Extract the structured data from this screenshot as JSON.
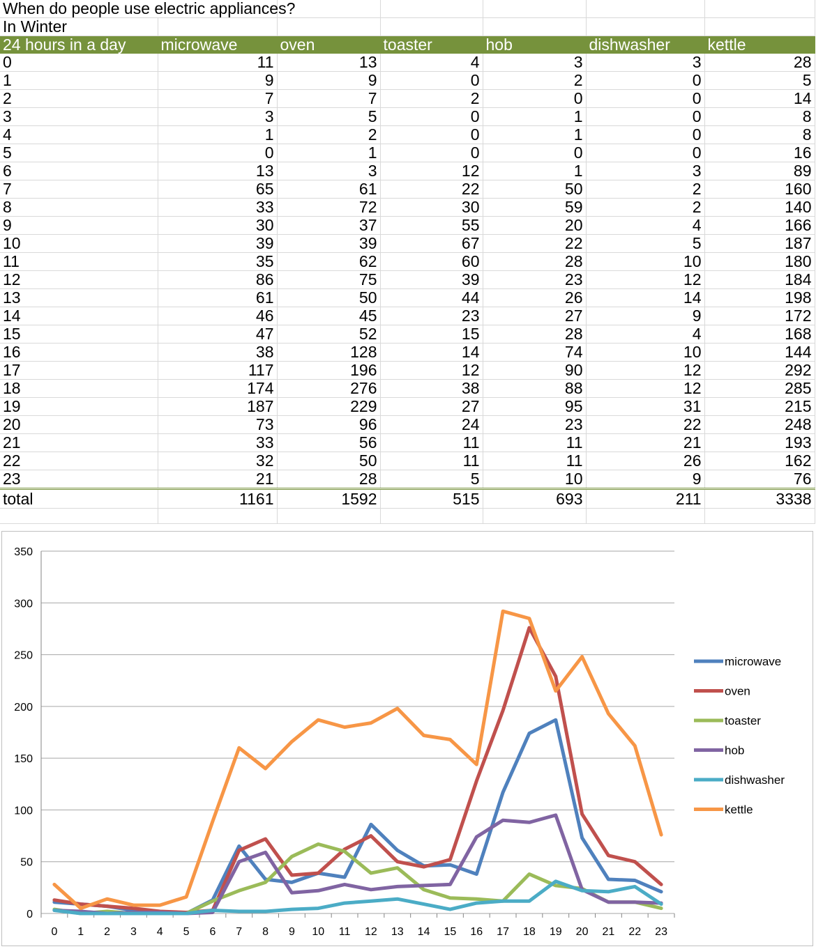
{
  "sheet": {
    "title": "When do people use electric appliances?",
    "subtitle": "In Winter",
    "header": [
      "24 hours in a day",
      "microwave",
      "oven",
      "toaster",
      "hob",
      "dishwasher",
      "kettle"
    ],
    "rows": [
      [
        "0",
        11,
        13,
        4,
        3,
        3,
        28
      ],
      [
        "1",
        9,
        9,
        0,
        2,
        0,
        5
      ],
      [
        "2",
        7,
        7,
        2,
        0,
        0,
        14
      ],
      [
        "3",
        3,
        5,
        0,
        1,
        0,
        8
      ],
      [
        "4",
        1,
        2,
        0,
        1,
        0,
        8
      ],
      [
        "5",
        0,
        1,
        0,
        0,
        0,
        16
      ],
      [
        "6",
        13,
        3,
        12,
        1,
        3,
        89
      ],
      [
        "7",
        65,
        61,
        22,
        50,
        2,
        160
      ],
      [
        "8",
        33,
        72,
        30,
        59,
        2,
        140
      ],
      [
        "9",
        30,
        37,
        55,
        20,
        4,
        166
      ],
      [
        "10",
        39,
        39,
        67,
        22,
        5,
        187
      ],
      [
        "11",
        35,
        62,
        60,
        28,
        10,
        180
      ],
      [
        "12",
        86,
        75,
        39,
        23,
        12,
        184
      ],
      [
        "13",
        61,
        50,
        44,
        26,
        14,
        198
      ],
      [
        "14",
        46,
        45,
        23,
        27,
        9,
        172
      ],
      [
        "15",
        47,
        52,
        15,
        28,
        4,
        168
      ],
      [
        "16",
        38,
        128,
        14,
        74,
        10,
        144
      ],
      [
        "17",
        117,
        196,
        12,
        90,
        12,
        292
      ],
      [
        "18",
        174,
        276,
        38,
        88,
        12,
        285
      ],
      [
        "19",
        187,
        229,
        27,
        95,
        31,
        215
      ],
      [
        "20",
        73,
        96,
        24,
        23,
        22,
        248
      ],
      [
        "21",
        33,
        56,
        11,
        11,
        21,
        193
      ],
      [
        "22",
        32,
        50,
        11,
        11,
        26,
        162
      ],
      [
        "23",
        21,
        28,
        5,
        10,
        9,
        76
      ]
    ],
    "total": [
      "total",
      1161,
      1592,
      515,
      693,
      211,
      3338
    ]
  },
  "chart_data": {
    "type": "line",
    "x": [
      "0",
      "1",
      "2",
      "3",
      "4",
      "5",
      "6",
      "7",
      "8",
      "9",
      "10",
      "11",
      "12",
      "13",
      "14",
      "15",
      "16",
      "17",
      "18",
      "19",
      "20",
      "21",
      "22",
      "23"
    ],
    "ylim": [
      0,
      350
    ],
    "yticks": [
      0,
      50,
      100,
      150,
      200,
      250,
      300,
      350
    ],
    "grid": true,
    "legend": "right",
    "series": [
      {
        "name": "microwave",
        "color": "#4f81bd",
        "values": [
          11,
          9,
          7,
          3,
          1,
          0,
          13,
          65,
          33,
          30,
          39,
          35,
          86,
          61,
          46,
          47,
          38,
          117,
          174,
          187,
          73,
          33,
          32,
          21
        ]
      },
      {
        "name": "oven",
        "color": "#c0504d",
        "values": [
          13,
          9,
          7,
          5,
          2,
          1,
          3,
          61,
          72,
          37,
          39,
          62,
          75,
          50,
          45,
          52,
          128,
          196,
          276,
          229,
          96,
          56,
          50,
          28
        ]
      },
      {
        "name": "toaster",
        "color": "#9bbb59",
        "values": [
          4,
          0,
          2,
          0,
          0,
          0,
          12,
          22,
          30,
          55,
          67,
          60,
          39,
          44,
          23,
          15,
          14,
          12,
          38,
          27,
          24,
          11,
          11,
          5
        ]
      },
      {
        "name": "hob",
        "color": "#8064a2",
        "values": [
          3,
          2,
          0,
          1,
          1,
          0,
          1,
          50,
          59,
          20,
          22,
          28,
          23,
          26,
          27,
          28,
          74,
          90,
          88,
          95,
          23,
          11,
          11,
          10
        ]
      },
      {
        "name": "dishwasher",
        "color": "#4bacc6",
        "values": [
          3,
          0,
          0,
          0,
          0,
          0,
          3,
          2,
          2,
          4,
          5,
          10,
          12,
          14,
          9,
          4,
          10,
          12,
          12,
          31,
          22,
          21,
          26,
          9
        ]
      },
      {
        "name": "kettle",
        "color": "#f79646",
        "values": [
          28,
          5,
          14,
          8,
          8,
          16,
          89,
          160,
          140,
          166,
          187,
          180,
          184,
          198,
          172,
          168,
          144,
          292,
          285,
          215,
          248,
          193,
          162,
          76
        ]
      }
    ]
  }
}
